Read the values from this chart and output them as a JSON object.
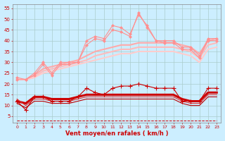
{
  "background_color": "#cceeff",
  "grid_color": "#aacccc",
  "xlabel": "Vent moyen/en rafales ( km/h )",
  "xlabel_color": "#cc0000",
  "ylabel_ticks": [
    5,
    10,
    15,
    20,
    25,
    30,
    35,
    40,
    45,
    50,
    55
  ],
  "xlim": [
    -0.5,
    23.5
  ],
  "ylim": [
    2,
    57
  ],
  "x": [
    0,
    1,
    2,
    3,
    4,
    5,
    6,
    7,
    8,
    9,
    10,
    11,
    12,
    13,
    14,
    15,
    16,
    17,
    18,
    19,
    20,
    21,
    22,
    23
  ],
  "series": [
    {
      "name": "rafales_jagged1",
      "color": "#ff9090",
      "lw": 0.8,
      "marker": "D",
      "markersize": 2,
      "markeredgewidth": 0.5,
      "linestyle": "-",
      "y": [
        23,
        22,
        25,
        30,
        25,
        30,
        30,
        30,
        40,
        42,
        41,
        47,
        46,
        43,
        52,
        47,
        40,
        40,
        40,
        37,
        37,
        33,
        41,
        41
      ]
    },
    {
      "name": "rafales_jagged2",
      "color": "#ff9090",
      "lw": 0.8,
      "marker": "D",
      "markersize": 2,
      "markeredgewidth": 0.5,
      "linestyle": "-",
      "y": [
        22,
        22,
        24,
        29,
        24,
        29,
        29,
        30,
        38,
        41,
        40,
        45,
        44,
        42,
        53,
        46,
        40,
        39,
        39,
        36,
        36,
        32,
        40,
        40
      ]
    },
    {
      "name": "smooth_top1",
      "color": "#ffaaaa",
      "lw": 1.5,
      "marker": null,
      "markersize": 0,
      "markeredgewidth": 0,
      "linestyle": "-",
      "y": [
        22,
        22,
        24,
        27,
        28,
        29,
        30,
        31,
        33,
        35,
        36,
        37,
        38,
        38,
        39,
        39,
        39,
        39,
        39,
        38,
        37,
        34,
        40,
        41
      ]
    },
    {
      "name": "smooth_top2",
      "color": "#ffbbbb",
      "lw": 1.5,
      "marker": null,
      "markersize": 0,
      "markeredgewidth": 0,
      "linestyle": "-",
      "y": [
        22,
        22,
        23,
        26,
        27,
        28,
        29,
        30,
        31,
        33,
        34,
        35,
        36,
        36,
        37,
        37,
        37,
        37,
        37,
        36,
        35,
        32,
        38,
        39
      ]
    },
    {
      "name": "smooth_top3",
      "color": "#ffcccc",
      "lw": 1.5,
      "marker": null,
      "markersize": 0,
      "markeredgewidth": 0,
      "linestyle": "-",
      "y": [
        22,
        22,
        23,
        25,
        26,
        27,
        28,
        29,
        30,
        31,
        32,
        33,
        34,
        34,
        35,
        35,
        35,
        35,
        35,
        34,
        33,
        30,
        36,
        37
      ]
    },
    {
      "name": "dark_jagged",
      "color": "#cc0000",
      "lw": 0.8,
      "marker": "+",
      "markersize": 4,
      "markeredgewidth": 0.8,
      "linestyle": "-",
      "y": [
        12,
        8,
        14,
        14,
        12,
        12,
        12,
        14,
        18,
        16,
        15,
        18,
        19,
        19,
        20,
        19,
        18,
        18,
        18,
        12,
        12,
        12,
        18,
        18
      ]
    },
    {
      "name": "dark_thick",
      "color": "#cc0000",
      "lw": 2.2,
      "marker": null,
      "markersize": 0,
      "markeredgewidth": 0,
      "linestyle": "-",
      "y": [
        12,
        11,
        14,
        14,
        13,
        13,
        13,
        14,
        15,
        15,
        15,
        15,
        15,
        15,
        15,
        15,
        15,
        15,
        15,
        13,
        12,
        12,
        16,
        16
      ]
    },
    {
      "name": "dark_thin1",
      "color": "#dd3333",
      "lw": 0.8,
      "marker": null,
      "markersize": 0,
      "markeredgewidth": 0,
      "linestyle": "-",
      "y": [
        13,
        10,
        13,
        13,
        12,
        12,
        12,
        13,
        14,
        14,
        14,
        14,
        14,
        14,
        14,
        14,
        14,
        14,
        14,
        12,
        11,
        11,
        15,
        15
      ]
    },
    {
      "name": "dark_thin2",
      "color": "#bb0000",
      "lw": 0.8,
      "marker": null,
      "markersize": 0,
      "markeredgewidth": 0,
      "linestyle": "-",
      "y": [
        11,
        9,
        12,
        12,
        11,
        11,
        11,
        12,
        13,
        13,
        13,
        13,
        13,
        13,
        13,
        13,
        13,
        13,
        13,
        11,
        10,
        10,
        14,
        14
      ]
    },
    {
      "name": "bottom_dashed",
      "color": "#cc0000",
      "lw": 0.7,
      "marker": null,
      "markersize": 0,
      "markeredgewidth": 0,
      "linestyle": "--",
      "y": [
        3,
        3,
        3,
        3,
        3,
        3,
        3,
        3,
        3,
        3,
        3,
        3,
        3,
        3,
        3,
        3,
        3,
        3,
        3,
        3,
        3,
        3,
        3,
        3
      ]
    }
  ]
}
